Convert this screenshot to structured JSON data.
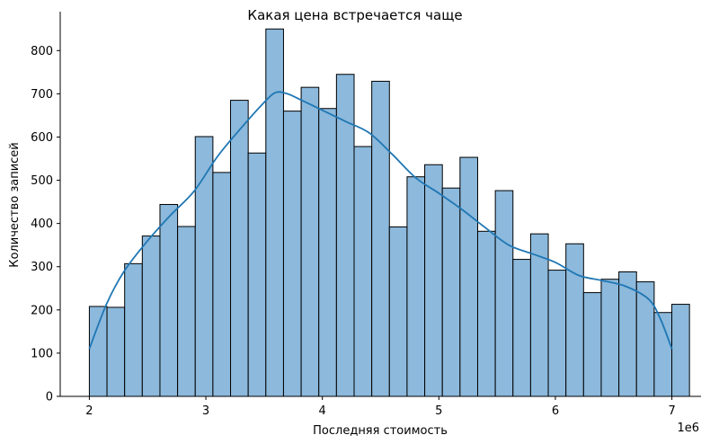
{
  "chart_data": {
    "type": "bar",
    "title": "Какая цена встречается чаще",
    "xlabel": "Последняя стоимость",
    "ylabel": "Количество записей",
    "x_offset_label": "1e6",
    "xlim": [
      1.75,
      7.25
    ],
    "ylim": [
      0,
      890
    ],
    "xticks": [
      2,
      3,
      4,
      5,
      6,
      7
    ],
    "yticks": [
      0,
      100,
      200,
      300,
      400,
      500,
      600,
      700,
      800
    ],
    "bin_start": 2.0,
    "bin_width": 0.1515,
    "values": [
      208,
      206,
      307,
      371,
      444,
      393,
      601,
      518,
      685,
      563,
      850,
      660,
      715,
      666,
      745,
      578,
      729,
      392,
      508,
      536,
      482,
      553,
      382,
      476,
      317,
      376,
      292,
      353,
      240,
      271,
      288,
      265,
      194,
      213
    ],
    "kde_x": [
      2.0,
      2.15,
      2.3,
      2.5,
      2.7,
      2.9,
      3.1,
      3.3,
      3.5,
      3.6,
      3.7,
      3.8,
      4.0,
      4.2,
      4.4,
      4.6,
      4.8,
      5.0,
      5.2,
      5.4,
      5.6,
      5.8,
      6.0,
      6.2,
      6.4,
      6.6,
      6.8,
      6.9,
      7.0
    ],
    "kde_y": [
      110,
      215,
      290,
      360,
      420,
      475,
      555,
      620,
      680,
      703,
      700,
      688,
      662,
      636,
      610,
      560,
      506,
      470,
      432,
      390,
      350,
      330,
      310,
      280,
      268,
      255,
      225,
      180,
      110
    ],
    "bar_color": "#8cb9dc",
    "bar_edge": "#000000",
    "line_color": "#1f77b4",
    "grid": false,
    "legend": "none"
  }
}
